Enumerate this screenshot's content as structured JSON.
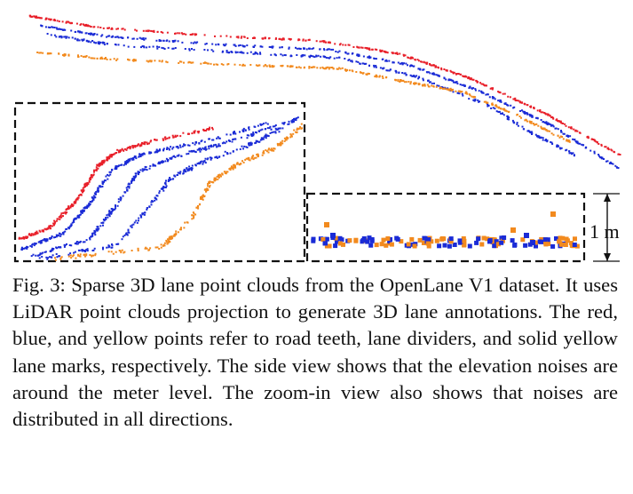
{
  "figure": {
    "scale_label": "1 m",
    "colors": {
      "road_teeth": "#e8202a",
      "lane_divider": "#1a2bd6",
      "yellow_lane": "#f28a1e",
      "frame": "#111111"
    }
  },
  "caption": {
    "text": "Fig. 3: Sparse 3D lane point clouds from the OpenLane V1 dataset. It uses LiDAR point clouds projection to generate 3D lane annotations. The red, blue, and yellow points refer to road teeth, lane dividers, and solid yellow lane marks, respectively. The side view shows that the elevation noises are around the meter level. The zoom-in view also shows that noises are distributed in all directions."
  }
}
